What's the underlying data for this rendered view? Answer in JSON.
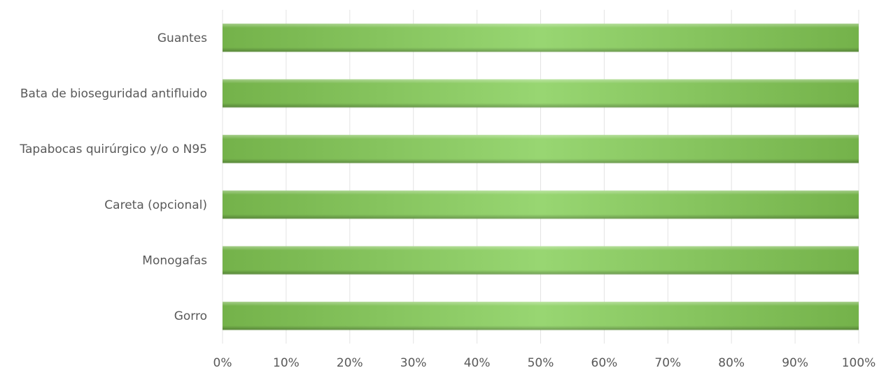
{
  "chart_data": {
    "type": "bar",
    "orientation": "horizontal",
    "categories": [
      "Guantes",
      "Bata de bioseguridad antifluido",
      "Tapabocas quirúrgico y/o o N95",
      "Careta (opcional)",
      "Monogafas",
      "Gorro"
    ],
    "values": [
      100,
      100,
      100,
      100,
      100,
      100
    ],
    "xlim": [
      0,
      100
    ],
    "x_ticks": [
      0,
      10,
      20,
      30,
      40,
      50,
      60,
      70,
      80,
      90,
      100
    ],
    "x_tick_labels": [
      "0%",
      "10%",
      "20%",
      "30%",
      "40%",
      "50%",
      "60%",
      "70%",
      "80%",
      "90%",
      "100%"
    ],
    "grid": true,
    "legend": "none",
    "bar_color": "#7ab648",
    "bar_highlight_color": "#98d672"
  }
}
